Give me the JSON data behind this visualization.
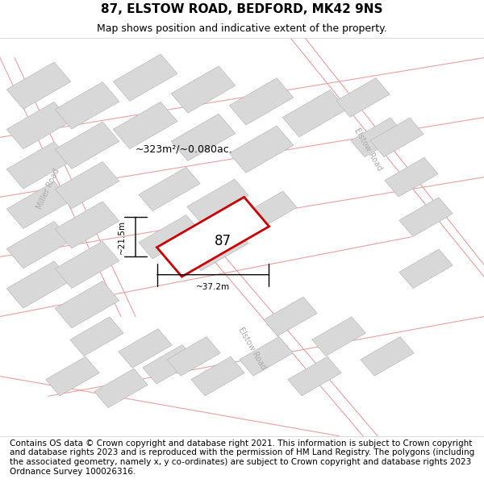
{
  "title_line1": "87, ELSTOW ROAD, BEDFORD, MK42 9NS",
  "title_line2": "Map shows position and indicative extent of the property.",
  "footer_text": "Contains OS data © Crown copyright and database right 2021. This information is subject to Crown copyright and database rights 2023 and is reproduced with the permission of HM Land Registry. The polygons (including the associated geometry, namely x, y co-ordinates) are subject to Crown copyright and database rights 2023 Ordnance Survey 100026316.",
  "area_text": "~323m²/~0.080ac.",
  "property_label": "87",
  "dim_width": "~37.2m",
  "dim_height": "~21.5m",
  "bg_map_color": "#f5f5f5",
  "road_line_color": "#e8a0a0",
  "block_fill_color": "#d8d8d8",
  "block_edge_color": "#cccccc",
  "highlight_fill": "#ffffff",
  "highlight_edge": "#cc0000",
  "road_label_color": "#aaaaaa",
  "title_fontsize": 11,
  "subtitle_fontsize": 9,
  "footer_fontsize": 7.5
}
